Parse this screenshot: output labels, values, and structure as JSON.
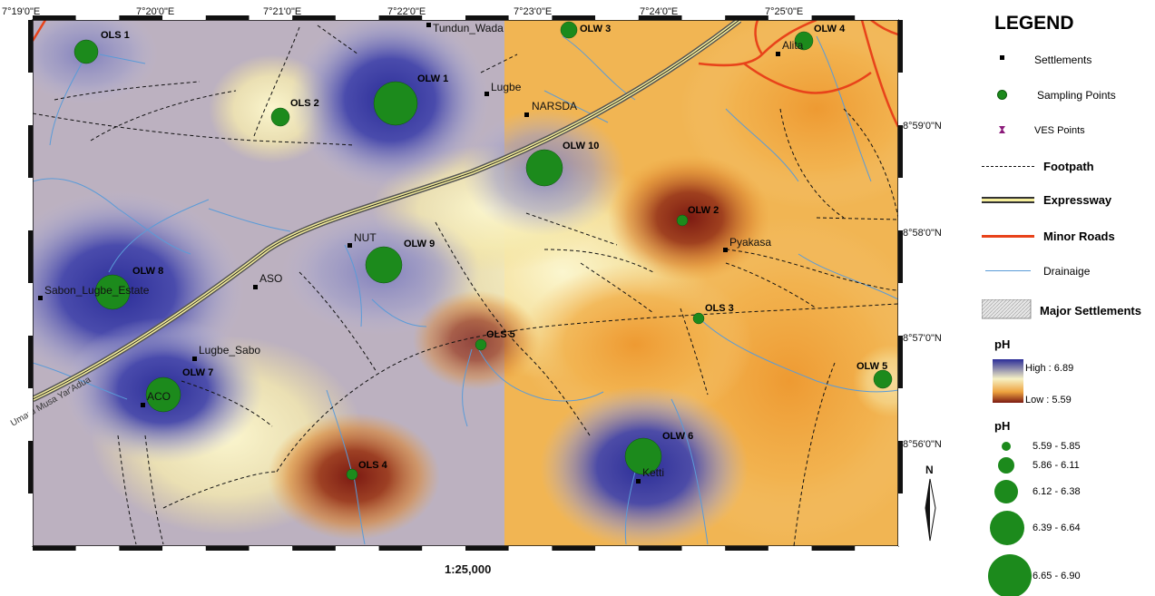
{
  "map": {
    "scale": "1:25,000",
    "north_label": "N",
    "colors": {
      "high": "#2d2f9a",
      "low": "#7a1c12",
      "mid": "#f6f1c4",
      "orange": "#f0a63e",
      "water": "#5a9bd8",
      "road": "#e8431a",
      "point": "#1c8a1c"
    },
    "lon_labels": [
      "7°19'0\"E",
      "7°20'0\"E",
      "7°21'0\"E",
      "7°22'0\"E",
      "7°23'0\"E",
      "7°24'0\"E",
      "7°25'0\"E"
    ],
    "lat_labels": [
      "8°59'0\"N",
      "8°58'0\"N",
      "8°57'0\"N",
      "8°56'0\"N"
    ],
    "settlements": [
      "Tundun_Wada",
      "Lugbe",
      "NARSDA",
      "Alita",
      "Pyakasa",
      "NUT",
      "ASO",
      "Sabon_Lugbe_Estate",
      "Lugbe_Sabo",
      "ACO",
      "Ketti"
    ],
    "sampling_points": [
      {
        "name": "OLS 1",
        "ph_class": 3
      },
      {
        "name": "OLS 2",
        "ph_class": 1
      },
      {
        "name": "OLW 1",
        "ph_class": 4
      },
      {
        "name": "OLW 3",
        "ph_class": 1
      },
      {
        "name": "OLW 4",
        "ph_class": 1
      },
      {
        "name": "OLW 10",
        "ph_class": 3
      },
      {
        "name": "OLW 2",
        "ph_class": 0
      },
      {
        "name": "OLW 9",
        "ph_class": 3
      },
      {
        "name": "OLW 8",
        "ph_class": 3
      },
      {
        "name": "OLS 3",
        "ph_class": 0
      },
      {
        "name": "OLS 5",
        "ph_class": 0
      },
      {
        "name": "OLW 5",
        "ph_class": 1
      },
      {
        "name": "OLW 7",
        "ph_class": 3
      },
      {
        "name": "OLW 6",
        "ph_class": 3
      },
      {
        "name": "OLS 4",
        "ph_class": 0
      }
    ],
    "expressway_label": "Umaru Musa Yar'Adua"
  },
  "legend": {
    "title": "LEGEND",
    "items": [
      "Settlements",
      "Sampling Points",
      "VES Points",
      "Footpath",
      "Expressway",
      "Minor Roads",
      "Drainaige",
      "Major Settlements"
    ],
    "ph_title": "pH",
    "ph_high": "High : 6.89",
    "ph_low": "Low : 5.59",
    "ph_classes_title": "pH",
    "ph_classes": [
      "5.59 - 5.85",
      "5.86 - 6.11",
      "6.12 - 6.38",
      "6.39 - 6.64",
      "6.65 - 6.90"
    ]
  }
}
